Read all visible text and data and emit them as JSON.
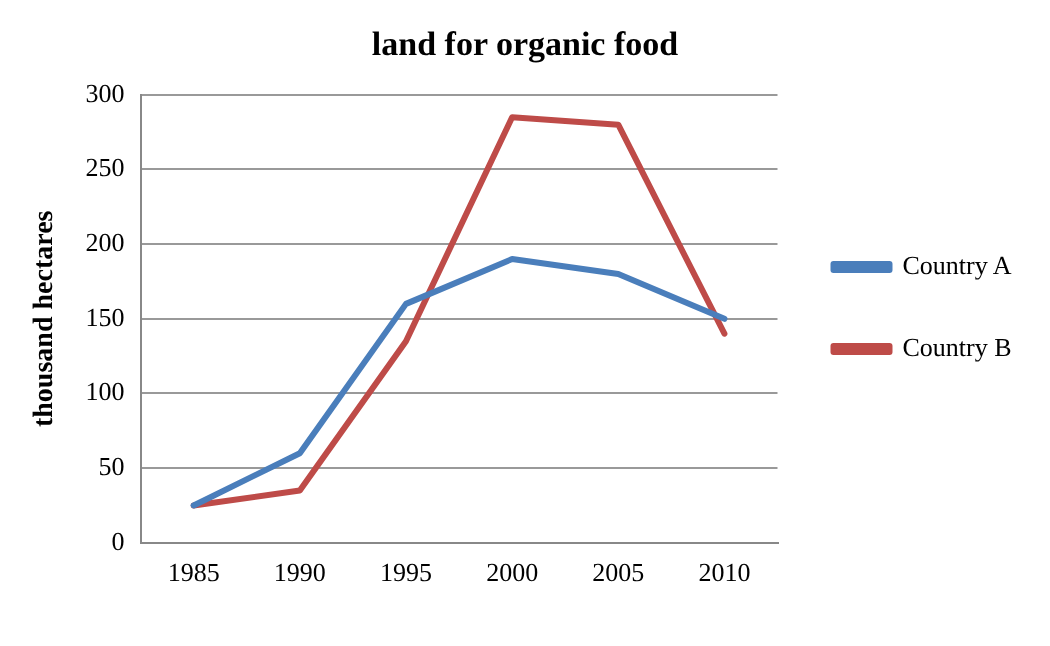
{
  "chart_data": {
    "type": "line",
    "title": "land for organic food",
    "ylabel": "thousand hectares",
    "categories": [
      "1985",
      "1990",
      "1995",
      "2000",
      "2005",
      "2010"
    ],
    "series": [
      {
        "name": "Country A",
        "color": "#4a7ebb",
        "values": [
          25,
          60,
          160,
          190,
          180,
          150
        ]
      },
      {
        "name": "Country B",
        "color": "#be4b48",
        "values": [
          25,
          35,
          135,
          285,
          280,
          140
        ]
      }
    ],
    "ylim": [
      0,
      300
    ],
    "yticks": [
      0,
      50,
      100,
      150,
      200,
      250,
      300
    ],
    "grid": "y",
    "legend": "right",
    "marker": "none",
    "line_style": "solid"
  }
}
